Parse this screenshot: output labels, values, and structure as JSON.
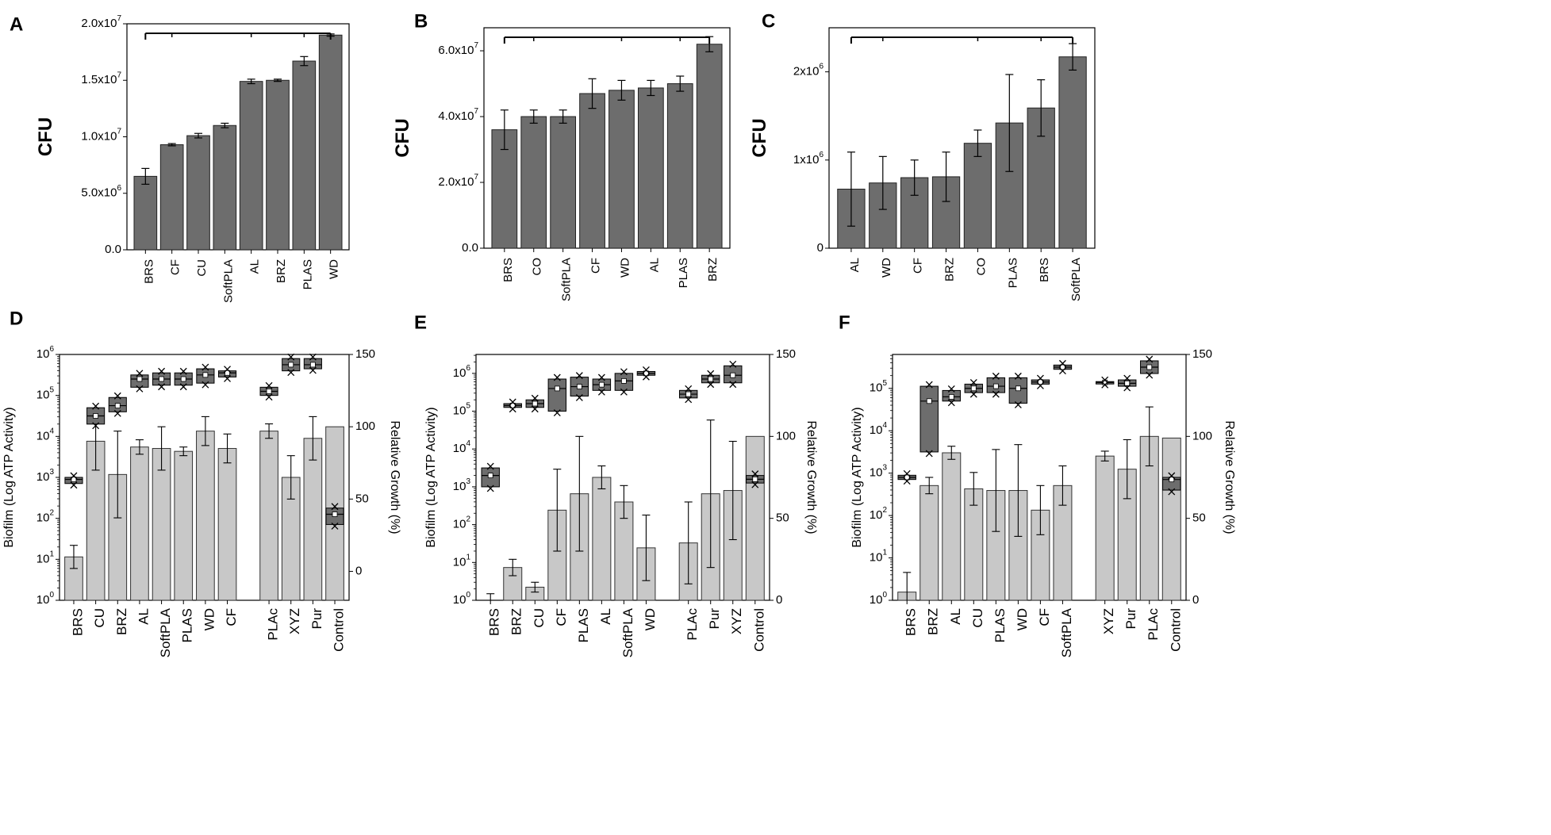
{
  "figure": {
    "colors": {
      "bar_dark": "#6d6d6d",
      "bar_light": "#c8c8c8",
      "axis": "#000000"
    }
  },
  "chart_data": [
    {
      "panel": "A",
      "type": "bar",
      "ylabel": "CFU",
      "ylim": [
        0,
        20000000
      ],
      "yticks": [
        0,
        5000000,
        10000000,
        15000000,
        20000000
      ],
      "ytick_labels": [
        "0.0",
        "5.0x10^6",
        "1.0x10^7",
        "1.5x10^7",
        "2.0x10^7"
      ],
      "categories": [
        "BRS",
        "CF",
        "CU",
        "SoftPLA",
        "AL",
        "BRZ",
        "PLAS",
        "WD"
      ],
      "values": [
        6500000,
        9300000,
        10100000,
        11000000,
        14900000,
        15000000,
        16700000,
        19000000
      ],
      "errors": [
        700000,
        100000,
        200000,
        200000,
        200000,
        100000,
        400000,
        100000
      ],
      "bracket": true
    },
    {
      "panel": "B",
      "type": "bar",
      "ylabel": "CFU",
      "ylim": [
        0,
        67000000
      ],
      "yticks": [
        0,
        20000000,
        40000000,
        60000000
      ],
      "ytick_labels": [
        "0.0",
        "2.0x10^7",
        "4.0x10^7",
        "6.0x10^7"
      ],
      "categories": [
        "BRS",
        "CO",
        "SoftPLA",
        "CF",
        "WD",
        "AL",
        "PLAS",
        "BRZ"
      ],
      "values": [
        36000000,
        40000000,
        40000000,
        47000000,
        48000000,
        48700000,
        50000000,
        62000000
      ],
      "errors": [
        6000000,
        2000000,
        2000000,
        4500000,
        3000000,
        2300000,
        2300000,
        2300000
      ],
      "bracket": true
    },
    {
      "panel": "C",
      "type": "bar",
      "ylabel": "CFU",
      "ylim": [
        0,
        2500000
      ],
      "yticks": [
        0,
        1000000,
        2000000
      ],
      "ytick_labels": [
        "0",
        "1x10^6",
        "2x10^6"
      ],
      "categories": [
        "AL",
        "WD",
        "CF",
        "BRZ",
        "CO",
        "PLAS",
        "BRS",
        "SoftPLA"
      ],
      "values": [
        670000,
        740000,
        800000,
        810000,
        1190000,
        1420000,
        1590000,
        2170000
      ],
      "errors": [
        420000,
        300000,
        200000,
        280000,
        150000,
        550000,
        320000,
        150000
      ],
      "bracket": true
    },
    {
      "panel": "D",
      "type": "bar+box",
      "ylabel": "Biofilm (Log ATP Activity)",
      "y2label": "Relative Growth (%)",
      "log_range": [
        0,
        6
      ],
      "y2lim": [
        -20,
        150
      ],
      "y2ticks": [
        0,
        50,
        100,
        150
      ],
      "categories": [
        "BRS",
        "CU",
        "BRZ",
        "AL",
        "SoftPLA",
        "PLAS",
        "WD",
        "CF",
        "PLAc",
        "XYZ",
        "Pur",
        "Control"
      ],
      "gaps_after": [
        7
      ],
      "growth": [
        10,
        90,
        67,
        86,
        85,
        83,
        97,
        85,
        97,
        65,
        92,
        100
      ],
      "growth_err": [
        8,
        20,
        30,
        5,
        15,
        3,
        10,
        10,
        5,
        15,
        15,
        0
      ],
      "box_log": [
        [
          2.85,
          2.95,
          3.0
        ],
        [
          4.3,
          4.5,
          4.7
        ],
        [
          4.6,
          4.75,
          4.95
        ],
        [
          5.2,
          5.4,
          5.5
        ],
        [
          5.25,
          5.4,
          5.55
        ],
        [
          5.25,
          5.4,
          5.55
        ],
        [
          5.3,
          5.5,
          5.65
        ],
        [
          5.45,
          5.55,
          5.6
        ],
        [
          5.0,
          5.1,
          5.2
        ],
        [
          5.6,
          5.75,
          5.9
        ],
        [
          5.65,
          5.75,
          5.9
        ],
        [
          1.85,
          2.1,
          2.25
        ]
      ]
    },
    {
      "panel": "E",
      "type": "bar+box",
      "ylabel": "Biofilm (Log ATP Activity)",
      "y2label": "Relative Growth (%)",
      "log_range": [
        0,
        6.5
      ],
      "y2lim": [
        0,
        150
      ],
      "y2ticks": [
        0,
        50,
        100,
        150
      ],
      "categories": [
        "BRS",
        "BRZ",
        "CU",
        "CF",
        "PLAS",
        "AL",
        "SoftPLA",
        "WD",
        "PLAc",
        "Pur",
        "XYZ",
        "Control"
      ],
      "gaps_after": [
        7
      ],
      "growth": [
        0,
        20,
        8,
        55,
        65,
        75,
        60,
        32,
        35,
        65,
        67,
        100
      ],
      "growth_err": [
        4,
        5,
        3,
        25,
        35,
        7,
        10,
        20,
        25,
        45,
        30,
        0
      ],
      "box_log": [
        [
          3.0,
          3.3,
          3.5
        ],
        [
          5.1,
          5.15,
          5.2
        ],
        [
          5.1,
          5.2,
          5.3
        ],
        [
          5.0,
          5.6,
          5.85
        ],
        [
          5.4,
          5.65,
          5.9
        ],
        [
          5.55,
          5.7,
          5.85
        ],
        [
          5.55,
          5.8,
          6.0
        ],
        [
          5.95,
          6.0,
          6.05
        ],
        [
          5.35,
          5.45,
          5.55
        ],
        [
          5.75,
          5.85,
          5.95
        ],
        [
          5.75,
          5.95,
          6.2
        ],
        [
          3.1,
          3.2,
          3.3
        ]
      ]
    },
    {
      "panel": "F",
      "type": "bar+box",
      "ylabel": "Biofilm (Log ATP Activity)",
      "y2label": "Relative Growth (%)",
      "log_range": [
        0,
        5.8
      ],
      "y2lim": [
        0,
        150
      ],
      "y2ticks": [
        0,
        50,
        100,
        150
      ],
      "categories": [
        "BRS",
        "BRZ",
        "AL",
        "CU",
        "PLAS",
        "WD",
        "CF",
        "SoftPLA",
        "XYZ",
        "Pur",
        "PLAc",
        "Control"
      ],
      "gaps_after": [
        7
      ],
      "growth": [
        5,
        70,
        90,
        68,
        67,
        67,
        55,
        70,
        88,
        80,
        100,
        99
      ],
      "growth_err": [
        12,
        5,
        4,
        10,
        25,
        28,
        15,
        12,
        3,
        18,
        18,
        0
      ],
      "box_log": [
        [
          2.85,
          2.9,
          2.95
        ],
        [
          3.5,
          4.7,
          5.05
        ],
        [
          4.7,
          4.8,
          4.95
        ],
        [
          4.9,
          5.0,
          5.1
        ],
        [
          4.9,
          5.05,
          5.25
        ],
        [
          4.65,
          5.0,
          5.25
        ],
        [
          5.1,
          5.15,
          5.2
        ],
        [
          5.45,
          5.5,
          5.55
        ],
        [
          5.12,
          5.14,
          5.16
        ],
        [
          5.05,
          5.12,
          5.2
        ],
        [
          5.35,
          5.5,
          5.65
        ],
        [
          2.6,
          2.85,
          2.9
        ]
      ]
    }
  ]
}
